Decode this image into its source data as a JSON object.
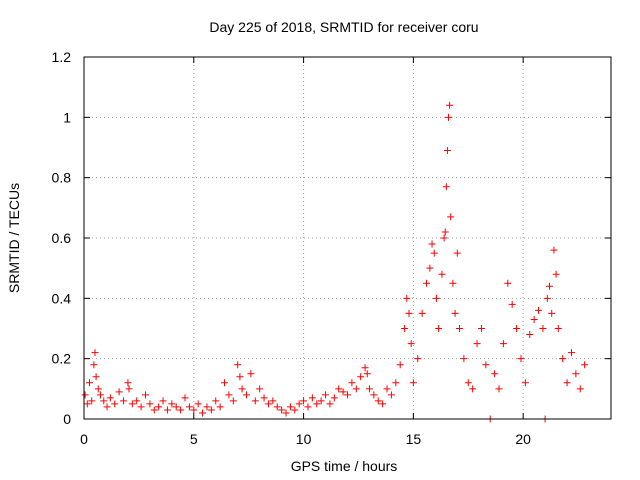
{
  "chart_data": {
    "type": "scatter",
    "title": "Day 225 of 2018, SRMTID for receiver coru",
    "xlabel": "GPS time / hours",
    "ylabel": "SRMTID / TECUs",
    "xlim": [
      0,
      24
    ],
    "ylim": [
      0,
      1.2
    ],
    "xticks": [
      0,
      5,
      10,
      15,
      20
    ],
    "yticks": [
      0,
      0.2,
      0.4,
      0.6,
      0.8,
      1,
      1.2
    ],
    "ytick_labels": [
      "0",
      "0.2",
      "0.4",
      "0.6",
      "0.8",
      "1",
      "1.2"
    ],
    "grid": true,
    "marker": "+",
    "series": [
      {
        "name": "SRMTID",
        "color": "#ff0000",
        "x": [
          0.05,
          0.15,
          0.25,
          0.35,
          0.45,
          0.5,
          0.55,
          0.65,
          0.75,
          0.9,
          1.05,
          1.2,
          1.4,
          1.6,
          1.8,
          2.0,
          2.05,
          2.2,
          2.4,
          2.6,
          2.8,
          3.0,
          3.2,
          3.4,
          3.6,
          3.8,
          4.0,
          4.2,
          4.4,
          4.6,
          4.8,
          5.0,
          5.2,
          5.4,
          5.6,
          5.8,
          6.0,
          6.2,
          6.4,
          6.6,
          6.8,
          7.0,
          7.1,
          7.2,
          7.4,
          7.6,
          7.8,
          8.0,
          8.2,
          8.4,
          8.6,
          8.8,
          9.0,
          9.2,
          9.4,
          9.6,
          9.8,
          10.0,
          10.2,
          10.4,
          10.6,
          10.8,
          11.0,
          11.2,
          11.4,
          11.6,
          11.8,
          12.0,
          12.2,
          12.4,
          12.6,
          12.8,
          12.9,
          13.0,
          13.2,
          13.4,
          13.6,
          13.8,
          14.0,
          14.2,
          14.4,
          14.6,
          14.7,
          14.8,
          14.9,
          15.0,
          15.2,
          15.4,
          15.6,
          15.75,
          15.85,
          15.95,
          16.05,
          16.15,
          16.3,
          16.4,
          16.45,
          16.5,
          16.55,
          16.6,
          16.65,
          16.7,
          16.8,
          16.9,
          17.0,
          17.1,
          17.3,
          17.5,
          17.7,
          17.9,
          18.1,
          18.3,
          18.5,
          18.7,
          18.9,
          19.1,
          19.3,
          19.5,
          19.7,
          19.9,
          20.1,
          20.3,
          20.5,
          20.7,
          20.9,
          21.0,
          21.1,
          21.2,
          21.3,
          21.4,
          21.5,
          21.6,
          21.8,
          22.0,
          22.2,
          22.4,
          22.6,
          22.8
        ],
        "y": [
          0.08,
          0.05,
          0.12,
          0.06,
          0.18,
          0.22,
          0.14,
          0.1,
          0.08,
          0.06,
          0.04,
          0.07,
          0.05,
          0.09,
          0.06,
          0.12,
          0.1,
          0.05,
          0.06,
          0.04,
          0.08,
          0.05,
          0.03,
          0.04,
          0.06,
          0.03,
          0.05,
          0.04,
          0.03,
          0.07,
          0.04,
          0.03,
          0.05,
          0.02,
          0.04,
          0.03,
          0.06,
          0.04,
          0.12,
          0.08,
          0.06,
          0.18,
          0.14,
          0.1,
          0.08,
          0.15,
          0.06,
          0.1,
          0.07,
          0.05,
          0.06,
          0.04,
          0.03,
          0.02,
          0.04,
          0.03,
          0.05,
          0.06,
          0.04,
          0.07,
          0.05,
          0.06,
          0.08,
          0.05,
          0.07,
          0.1,
          0.09,
          0.08,
          0.12,
          0.1,
          0.14,
          0.17,
          0.15,
          0.1,
          0.08,
          0.06,
          0.05,
          0.1,
          0.08,
          0.12,
          0.18,
          0.3,
          0.4,
          0.35,
          0.25,
          0.12,
          0.2,
          0.35,
          0.45,
          0.5,
          0.58,
          0.55,
          0.4,
          0.3,
          0.48,
          0.6,
          0.62,
          0.77,
          0.89,
          1.0,
          1.04,
          0.67,
          0.45,
          0.35,
          0.55,
          0.3,
          0.2,
          0.12,
          0.1,
          0.25,
          0.3,
          0.18,
          0.0,
          0.15,
          0.1,
          0.25,
          0.45,
          0.38,
          0.3,
          0.2,
          0.12,
          0.28,
          0.33,
          0.36,
          0.3,
          0.0,
          0.4,
          0.44,
          0.35,
          0.56,
          0.48,
          0.3,
          0.2,
          0.12,
          0.22,
          0.15,
          0.1,
          0.18
        ]
      }
    ]
  }
}
